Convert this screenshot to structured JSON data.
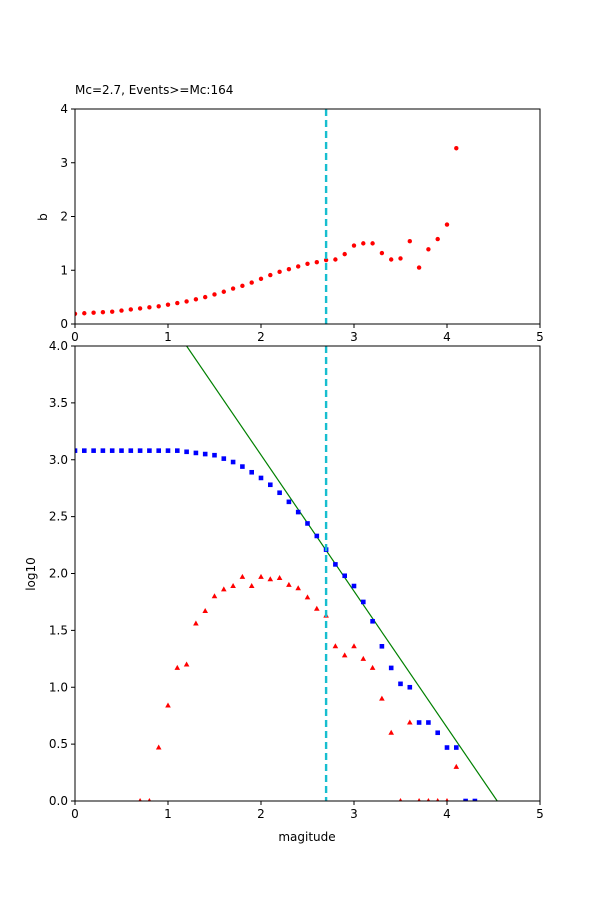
{
  "chart_data": [
    {
      "type": "scatter",
      "title": "Mc=2.7, Events>=Mc:164",
      "xlabel": "",
      "ylabel": "b",
      "xlim": [
        0,
        5
      ],
      "ylim": [
        0,
        4
      ],
      "xticks": [
        "0",
        "1",
        "2",
        "3",
        "4",
        "5"
      ],
      "yticks": [
        "0",
        "1",
        "2",
        "3",
        "4"
      ],
      "mc_line": 2.7,
      "series": [
        {
          "color": "#ff0000",
          "marker": "circle",
          "x": [
            0.0,
            0.1,
            0.2,
            0.3,
            0.4,
            0.5,
            0.6,
            0.7,
            0.8,
            0.9,
            1.0,
            1.1,
            1.2,
            1.3,
            1.4,
            1.5,
            1.6,
            1.7,
            1.8,
            1.9,
            2.0,
            2.1,
            2.2,
            2.3,
            2.4,
            2.5,
            2.6,
            2.7,
            2.8,
            2.9,
            3.0,
            3.1,
            3.2,
            3.3,
            3.4,
            3.5,
            3.6,
            3.7,
            3.8,
            3.9,
            4.0,
            4.1
          ],
          "y": [
            0.19,
            0.2,
            0.21,
            0.22,
            0.23,
            0.25,
            0.27,
            0.29,
            0.31,
            0.33,
            0.36,
            0.39,
            0.42,
            0.46,
            0.5,
            0.55,
            0.6,
            0.66,
            0.71,
            0.77,
            0.84,
            0.91,
            0.97,
            1.02,
            1.07,
            1.12,
            1.15,
            1.19,
            1.2,
            1.3,
            1.46,
            1.5,
            1.5,
            1.32,
            1.2,
            1.22,
            1.54,
            1.05,
            1.39,
            1.58,
            1.85,
            3.27
          ]
        }
      ]
    },
    {
      "type": "scatter",
      "title": "",
      "xlabel": "magitude",
      "ylabel": "log10",
      "xlim": [
        0,
        5
      ],
      "ylim": [
        0,
        4
      ],
      "xticks": [
        "0",
        "1",
        "2",
        "3",
        "4",
        "5"
      ],
      "yticks": [
        "0.0",
        "0.5",
        "1.0",
        "1.5",
        "2.0",
        "2.5",
        "3.0",
        "3.5",
        "4.0"
      ],
      "mc_line": 2.7,
      "fit_line": {
        "color": "#008000",
        "x": [
          1.2,
          4.54
        ],
        "y": [
          4.0,
          0.0
        ]
      },
      "series": [
        {
          "color": "#0000ff",
          "marker": "square",
          "x": [
            0.0,
            0.1,
            0.2,
            0.3,
            0.4,
            0.5,
            0.6,
            0.7,
            0.8,
            0.9,
            1.0,
            1.1,
            1.2,
            1.3,
            1.4,
            1.5,
            1.6,
            1.7,
            1.8,
            1.9,
            2.0,
            2.1,
            2.2,
            2.3,
            2.4,
            2.5,
            2.6,
            2.7,
            2.8,
            2.9,
            3.0,
            3.1,
            3.2,
            3.3,
            3.4,
            3.5,
            3.6,
            3.7,
            3.8,
            3.9,
            4.0,
            4.1,
            4.2,
            4.3
          ],
          "y": [
            3.08,
            3.08,
            3.08,
            3.08,
            3.08,
            3.08,
            3.08,
            3.08,
            3.08,
            3.08,
            3.08,
            3.08,
            3.07,
            3.06,
            3.05,
            3.04,
            3.01,
            2.98,
            2.94,
            2.89,
            2.84,
            2.78,
            2.71,
            2.63,
            2.54,
            2.44,
            2.33,
            2.21,
            2.08,
            1.98,
            1.89,
            1.75,
            1.58,
            1.36,
            1.17,
            1.03,
            1.0,
            0.69,
            0.69,
            0.6,
            0.47,
            0.47,
            0.0,
            0.0
          ]
        },
        {
          "color": "#ff0000",
          "marker": "triangle",
          "x": [
            0.7,
            0.8,
            0.9,
            1.0,
            1.1,
            1.2,
            1.3,
            1.4,
            1.5,
            1.6,
            1.7,
            1.8,
            1.9,
            2.0,
            2.1,
            2.2,
            2.3,
            2.4,
            2.5,
            2.6,
            2.7,
            2.8,
            2.9,
            3.0,
            3.1,
            3.2,
            3.3,
            3.4,
            3.5,
            3.6,
            3.7,
            3.8,
            3.9,
            4.0,
            4.1
          ],
          "y": [
            0.0,
            0.0,
            0.47,
            0.84,
            1.17,
            1.2,
            1.56,
            1.67,
            1.8,
            1.86,
            1.89,
            1.97,
            1.89,
            1.97,
            1.95,
            1.96,
            1.9,
            1.87,
            1.79,
            1.69,
            1.63,
            1.36,
            1.28,
            1.36,
            1.25,
            1.17,
            0.9,
            0.6,
            0.0,
            0.69,
            0.0,
            0.0,
            0.0,
            0.0,
            0.3
          ]
        }
      ]
    }
  ]
}
